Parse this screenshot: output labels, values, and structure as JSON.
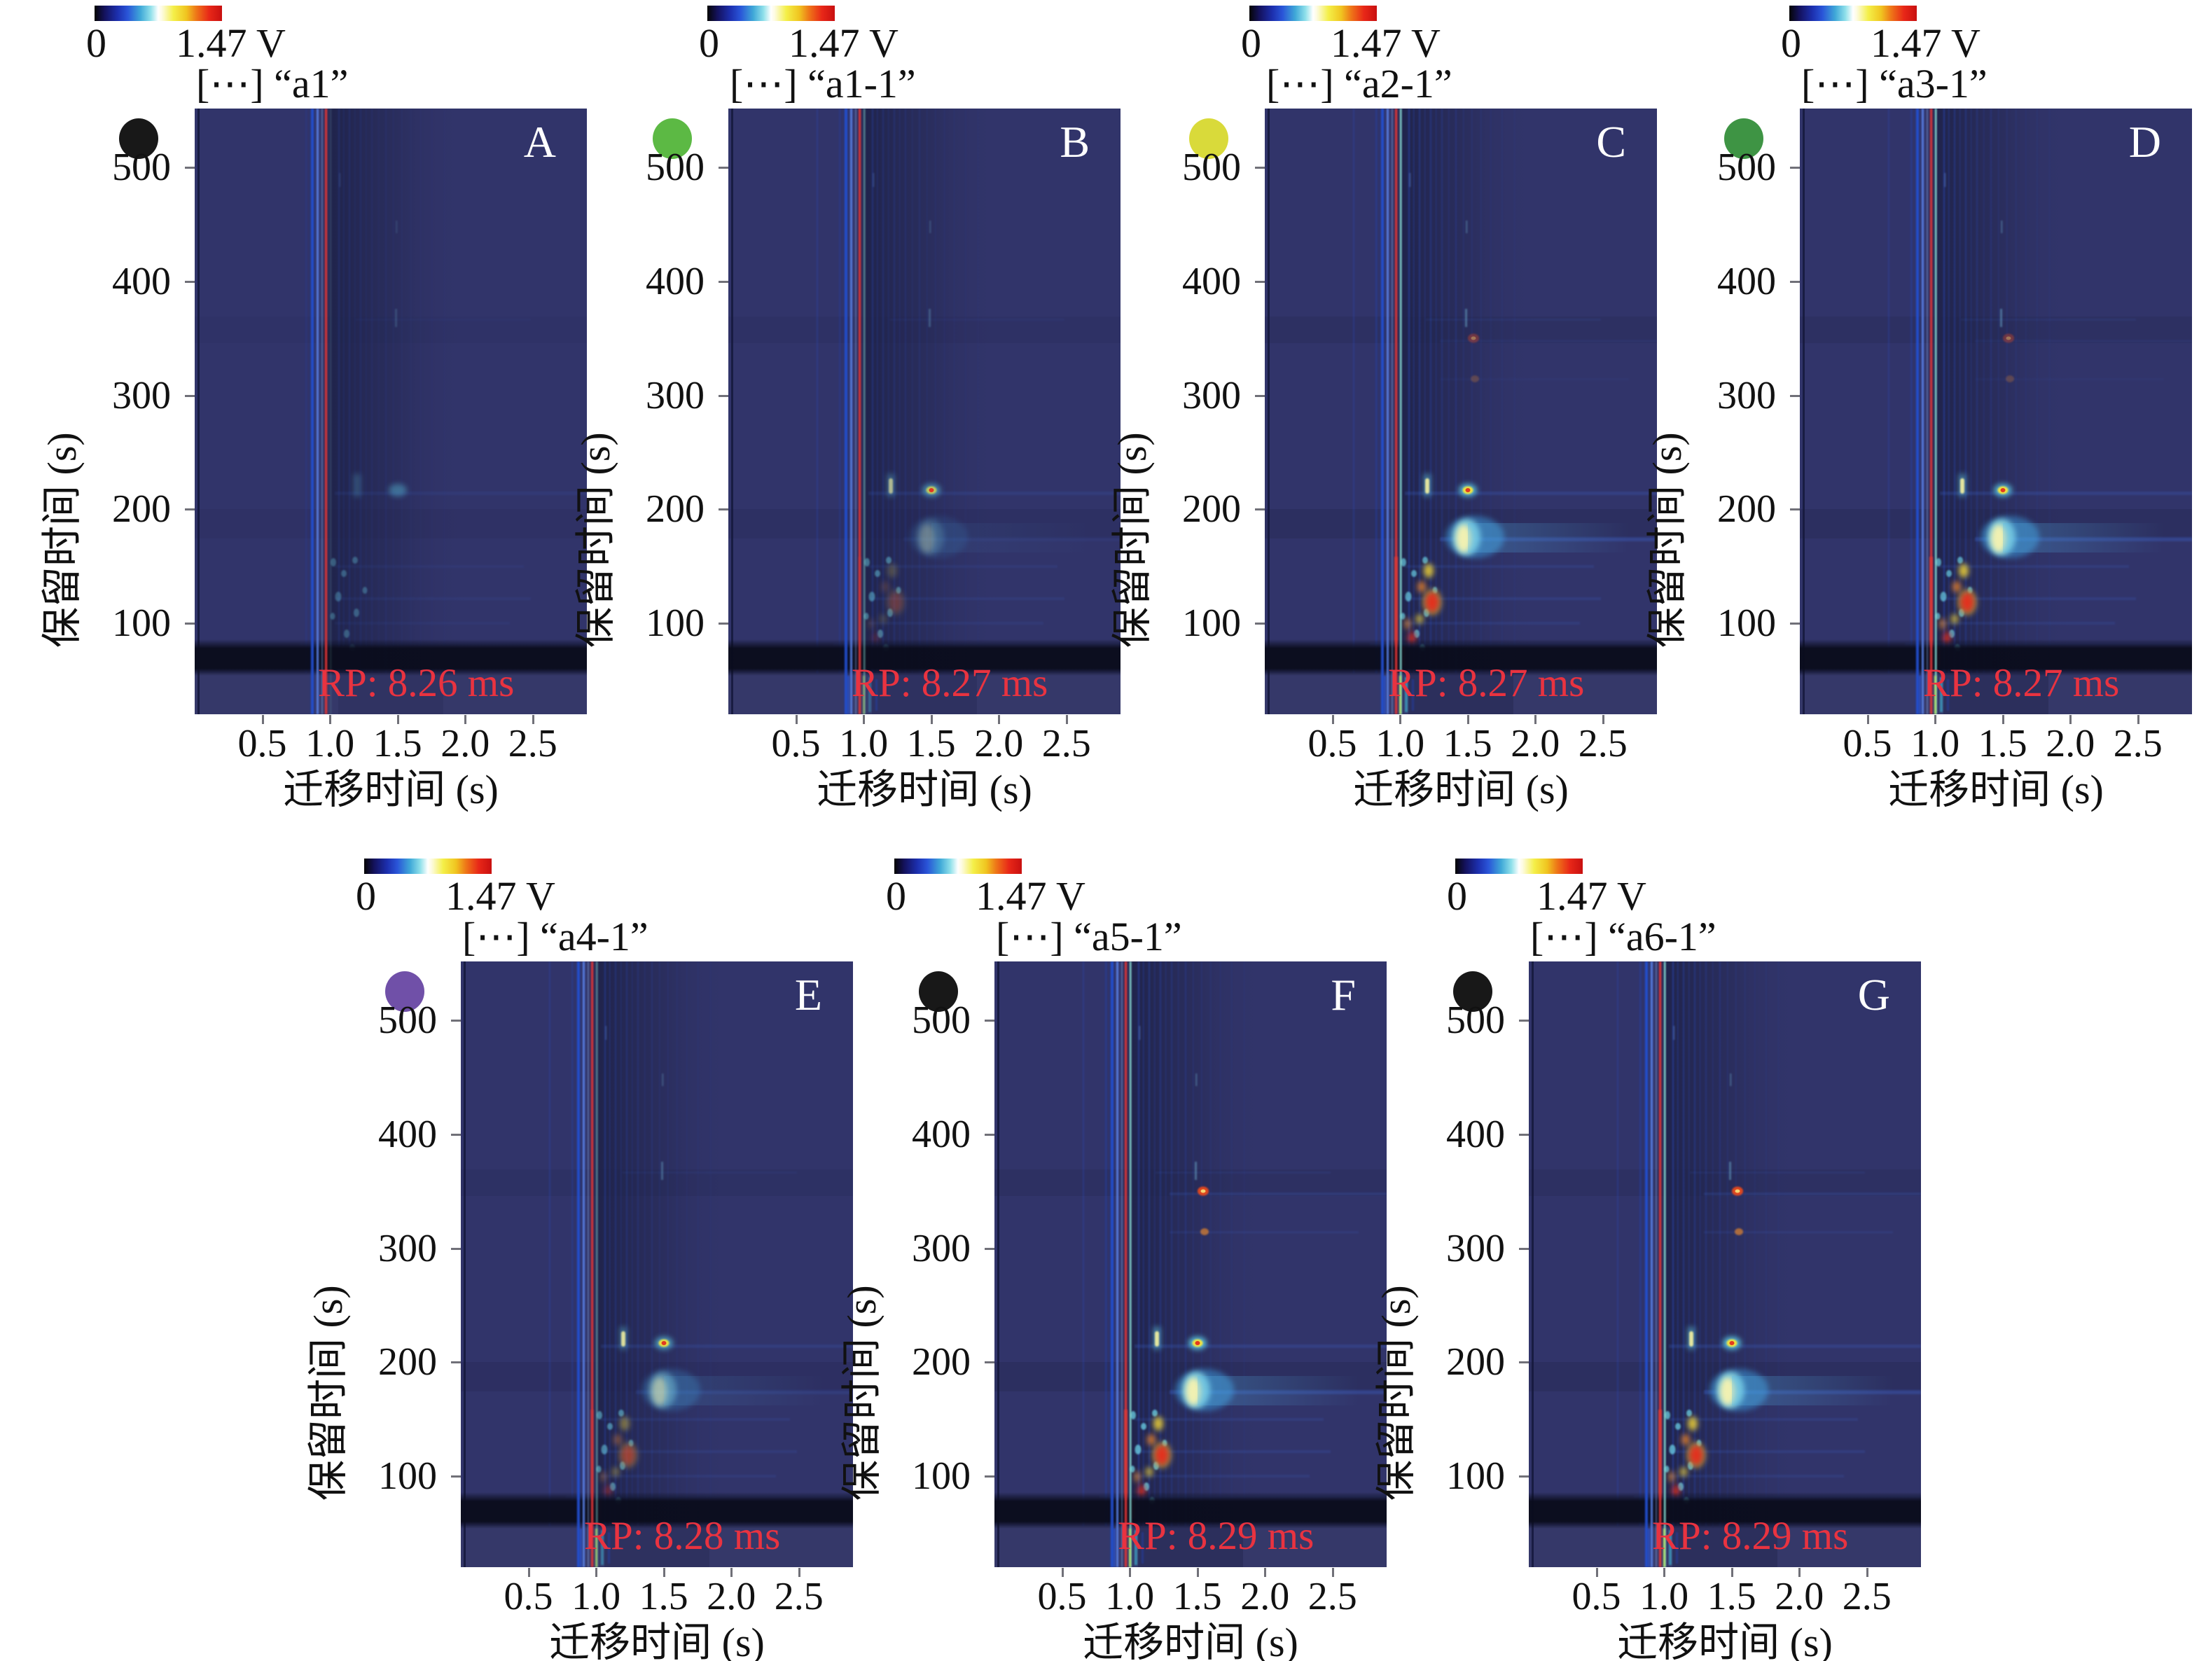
{
  "figure": {
    "description": "Seven GC-IMS two-dimensional topographic heatmap panels",
    "background": "#ffffff",
    "heatmap_background": "#31346a",
    "rp_text_color": "#e93340",
    "panel_letter_color": "#ffffff"
  },
  "chart_data": {
    "type": "heatmap",
    "title": "",
    "xlabel": "迁移时间 (s)",
    "ylabel": "保留时间 (s)",
    "x_tick_labels": [
      "0.5",
      "1.0",
      "1.5",
      "2.0",
      "2.5"
    ],
    "y_tick_labels": [
      "500",
      "400",
      "300",
      "200",
      "100"
    ],
    "x_ticks": [
      0.5,
      1.0,
      1.5,
      2.0,
      2.5
    ],
    "y_ticks": [
      500,
      400,
      300,
      200,
      100
    ],
    "x_range_s": [
      0,
      2.9
    ],
    "y_range_s": [
      20,
      552
    ],
    "rip_drift_time_s": 0.97,
    "colorbar": {
      "min_label": "0",
      "max_label": "1.47 V",
      "min_v": 0,
      "max_v": 1.47,
      "gradient": [
        "#050505",
        "#14125e",
        "#1c2fae",
        "#2a55d8",
        "#3fa8d8",
        "#8fe0ea",
        "#ffffff",
        "#f4ef48",
        "#f0c520",
        "#ee7518",
        "#e82718",
        "#c81010"
      ]
    },
    "panels": [
      {
        "letter": "A",
        "sample": "[⋯] “a1”",
        "rp_label": "RP: 8.26 ms",
        "rp_ms": 8.26,
        "marker_color": "#181818",
        "intensity": 0.25
      },
      {
        "letter": "B",
        "sample": "[⋯] “a1-1”",
        "rp_label": "RP: 8.27 ms",
        "rp_ms": 8.27,
        "marker_color": "#5cb944",
        "intensity": 0.55
      },
      {
        "letter": "C",
        "sample": "[⋯] “a2-1”",
        "rp_label": "RP: 8.27 ms",
        "rp_ms": 8.27,
        "marker_color": "#d9da3a",
        "intensity": 1.0
      },
      {
        "letter": "D",
        "sample": "[⋯] “a3-1”",
        "rp_label": "RP: 8.27 ms",
        "rp_ms": 8.27,
        "marker_color": "#3e9444",
        "intensity": 1.0
      },
      {
        "letter": "E",
        "sample": "[⋯] “a4-1”",
        "rp_label": "RP: 8.28 ms",
        "rp_ms": 8.28,
        "marker_color": "#7050a8",
        "intensity": 0.7
      },
      {
        "letter": "F",
        "sample": "[⋯] “a5-1”",
        "rp_label": "RP: 8.29 ms",
        "rp_ms": 8.29,
        "marker_color": "#181818",
        "intensity": 1.15
      },
      {
        "letter": "G",
        "sample": "[⋯] “a6-1”",
        "rp_label": "RP: 8.29 ms",
        "rp_ms": 8.29,
        "marker_color": "#181818",
        "intensity": 1.12
      }
    ]
  }
}
